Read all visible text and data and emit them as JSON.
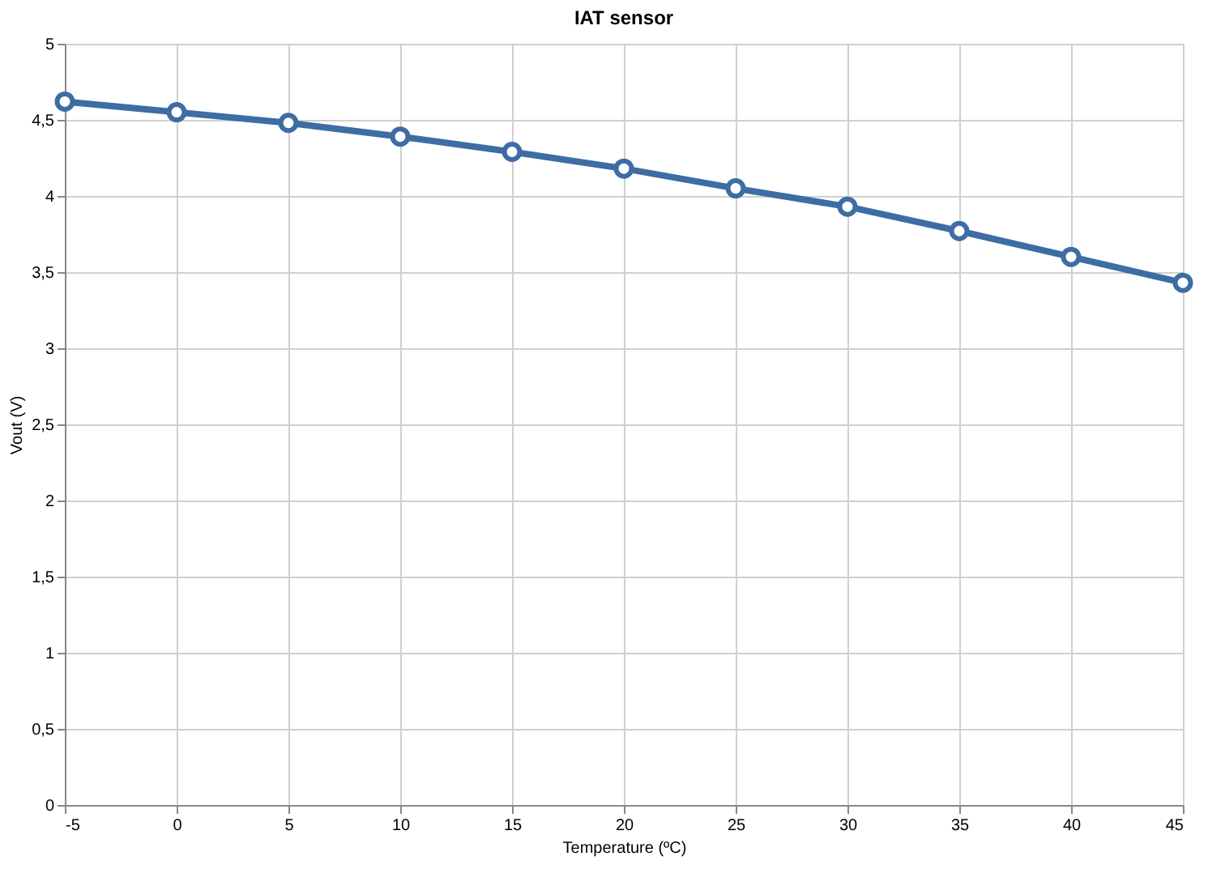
{
  "chart_data": {
    "type": "line",
    "title": "IAT sensor",
    "xlabel": "Temperature (ºC)",
    "ylabel": "Vout (V)",
    "x": [
      -5,
      0,
      5,
      10,
      15,
      20,
      25,
      30,
      35,
      40,
      45
    ],
    "series": [
      {
        "color": "#3d6da3",
        "values": [
          4.62,
          4.55,
          4.48,
          4.39,
          4.29,
          4.18,
          4.05,
          3.93,
          3.77,
          3.6,
          3.43
        ]
      }
    ],
    "xlim": [
      -5,
      45
    ],
    "xticks": [
      -5,
      0,
      5,
      10,
      15,
      20,
      25,
      30,
      35,
      40,
      45
    ],
    "ylim": [
      0,
      5
    ],
    "yticks": [
      0,
      {
        "value": 0.5,
        "label": "0,5"
      },
      1,
      {
        "value": 1.5,
        "label": "1,5"
      },
      2,
      {
        "value": 2.5,
        "label": "2,5"
      },
      3,
      {
        "value": 3.5,
        "label": "3,5"
      },
      4,
      {
        "value": 4.5,
        "label": "4,5"
      },
      5
    ],
    "grid": true,
    "marker": "circle",
    "line_style": "solid"
  }
}
